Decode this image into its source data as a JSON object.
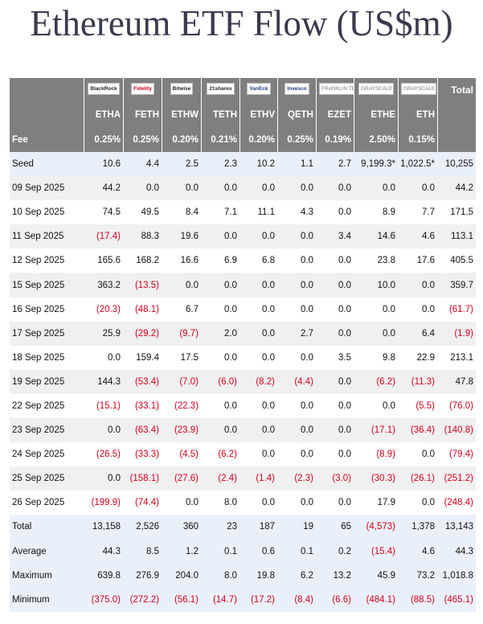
{
  "title": "Ethereum ETF Flow (US$m)",
  "colors": {
    "header_bg": "#7f7f7f",
    "negative": "#d0021b",
    "summary_bg": "#eaf0fa"
  },
  "chart_data": {
    "type": "table",
    "title": "Ethereum ETF Flow (US$m)",
    "logos": [
      "BlackRock",
      "Fidelity",
      "Bitwise",
      "21shares",
      "VanEck",
      "Invesco",
      "FRANKLIN TEMPLETON",
      "GRAYSCALE",
      "GRAYSCALE"
    ],
    "tickers": [
      "ETHA",
      "FETH",
      "ETHW",
      "TETH",
      "ETHV",
      "QETH",
      "EZET",
      "ETHE",
      "ETH"
    ],
    "total_label": "Total",
    "fee_label": "Fee",
    "fees": [
      "0.25%",
      "0.25%",
      "0.20%",
      "0.21%",
      "0.20%",
      "0.25%",
      "0.19%",
      "2.50%",
      "0.15%"
    ],
    "rows": [
      {
        "label": "Seed",
        "values": [
          "10.6",
          "4.4",
          "2.5",
          "2.3",
          "10.2",
          "1.1",
          "2.7",
          "9,199.3*",
          "1,022.5*"
        ],
        "total": "10,255"
      },
      {
        "label": "09 Sep 2025",
        "values": [
          "44.2",
          "0.0",
          "0.0",
          "0.0",
          "0.0",
          "0.0",
          "0.0",
          "0.0",
          "0.0"
        ],
        "total": "44.2"
      },
      {
        "label": "10 Sep 2025",
        "values": [
          "74.5",
          "49.5",
          "8.4",
          "7.1",
          "11.1",
          "4.3",
          "0.0",
          "8.9",
          "7.7"
        ],
        "total": "171.5"
      },
      {
        "label": "11 Sep 2025",
        "values": [
          "(17.4)",
          "88.3",
          "19.6",
          "0.0",
          "0.0",
          "0.0",
          "3.4",
          "14.6",
          "4.6"
        ],
        "total": "113.1"
      },
      {
        "label": "12 Sep 2025",
        "values": [
          "165.6",
          "168.2",
          "16.6",
          "6.9",
          "6.8",
          "0.0",
          "0.0",
          "23.8",
          "17.6"
        ],
        "total": "405.5"
      },
      {
        "label": "15 Sep 2025",
        "values": [
          "363.2",
          "(13.5)",
          "0.0",
          "0.0",
          "0.0",
          "0.0",
          "0.0",
          "10.0",
          "0.0"
        ],
        "total": "359.7"
      },
      {
        "label": "16 Sep 2025",
        "values": [
          "(20.3)",
          "(48.1)",
          "6.7",
          "0.0",
          "0.0",
          "0.0",
          "0.0",
          "0.0",
          "0.0"
        ],
        "total": "(61.7)"
      },
      {
        "label": "17 Sep 2025",
        "values": [
          "25.9",
          "(29.2)",
          "(9.7)",
          "2.0",
          "0.0",
          "2.7",
          "0.0",
          "0.0",
          "6.4"
        ],
        "total": "(1.9)"
      },
      {
        "label": "18 Sep 2025",
        "values": [
          "0.0",
          "159.4",
          "17.5",
          "0.0",
          "0.0",
          "0.0",
          "3.5",
          "9.8",
          "22.9"
        ],
        "total": "213.1"
      },
      {
        "label": "19 Sep 2025",
        "values": [
          "144.3",
          "(53.4)",
          "(7.0)",
          "(6.0)",
          "(8.2)",
          "(4.4)",
          "0.0",
          "(6.2)",
          "(11.3)"
        ],
        "total": "47.8"
      },
      {
        "label": "22 Sep 2025",
        "values": [
          "(15.1)",
          "(33.1)",
          "(22.3)",
          "0.0",
          "0.0",
          "0.0",
          "0.0",
          "0.0",
          "(5.5)"
        ],
        "total": "(76.0)"
      },
      {
        "label": "23 Sep 2025",
        "values": [
          "0.0",
          "(63.4)",
          "(23.9)",
          "0.0",
          "0.0",
          "0.0",
          "0.0",
          "(17.1)",
          "(36.4)"
        ],
        "total": "(140.8)"
      },
      {
        "label": "24 Sep 2025",
        "values": [
          "(26.5)",
          "(33.3)",
          "(4.5)",
          "(6.2)",
          "0.0",
          "0.0",
          "0.0",
          "(8.9)",
          "0.0"
        ],
        "total": "(79.4)"
      },
      {
        "label": "25 Sep 2025",
        "values": [
          "0.0",
          "(158.1)",
          "(27.6)",
          "(2.4)",
          "(1.4)",
          "(2.3)",
          "(3.0)",
          "(30.3)",
          "(26.1)"
        ],
        "total": "(251.2)"
      },
      {
        "label": "26 Sep 2025",
        "values": [
          "(199.9)",
          "(74.4)",
          "0.0",
          "8.0",
          "0.0",
          "0.0",
          "0.0",
          "17.9",
          "0.0"
        ],
        "total": "(248.4)"
      },
      {
        "label": "Total",
        "values": [
          "13,158",
          "2,526",
          "360",
          "23",
          "187",
          "19",
          "65",
          "(4,573)",
          "1,378"
        ],
        "total": "13,143"
      },
      {
        "label": "Average",
        "values": [
          "44.3",
          "8.5",
          "1.2",
          "0.1",
          "0.6",
          "0.1",
          "0.2",
          "(15.4)",
          "4.6"
        ],
        "total": "44.3"
      },
      {
        "label": "Maximum",
        "values": [
          "639.8",
          "276.9",
          "204.0",
          "8.0",
          "19.8",
          "6.2",
          "13.2",
          "45.9",
          "73.2"
        ],
        "total": "1,018.8"
      },
      {
        "label": "Minimum",
        "values": [
          "(375.0)",
          "(272.2)",
          "(56.1)",
          "(14.7)",
          "(17.2)",
          "(8.4)",
          "(6.6)",
          "(484.1)",
          "(88.5)"
        ],
        "total": "(465.1)"
      }
    ]
  }
}
